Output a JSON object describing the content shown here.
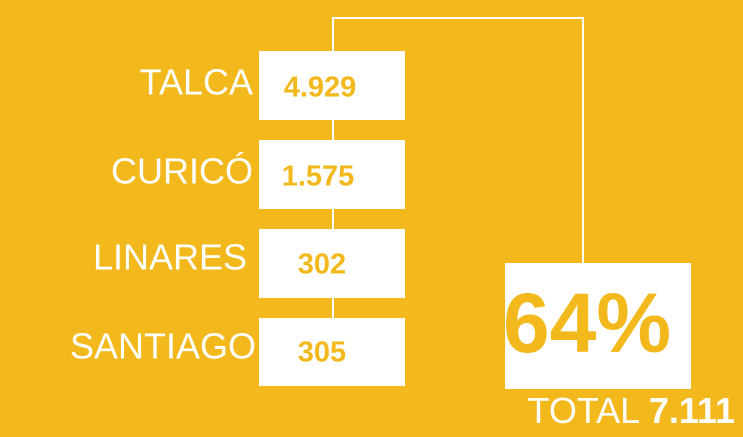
{
  "rows": [
    {
      "city": "TALCA",
      "value": "4.929"
    },
    {
      "city": "CURICÓ",
      "value": "1.575"
    },
    {
      "city": "LINARES",
      "value": "302"
    },
    {
      "city": "SANTIAGO",
      "value": "305"
    }
  ],
  "share": "64%",
  "total": {
    "label": "TOTAL",
    "value": "7.111"
  }
}
